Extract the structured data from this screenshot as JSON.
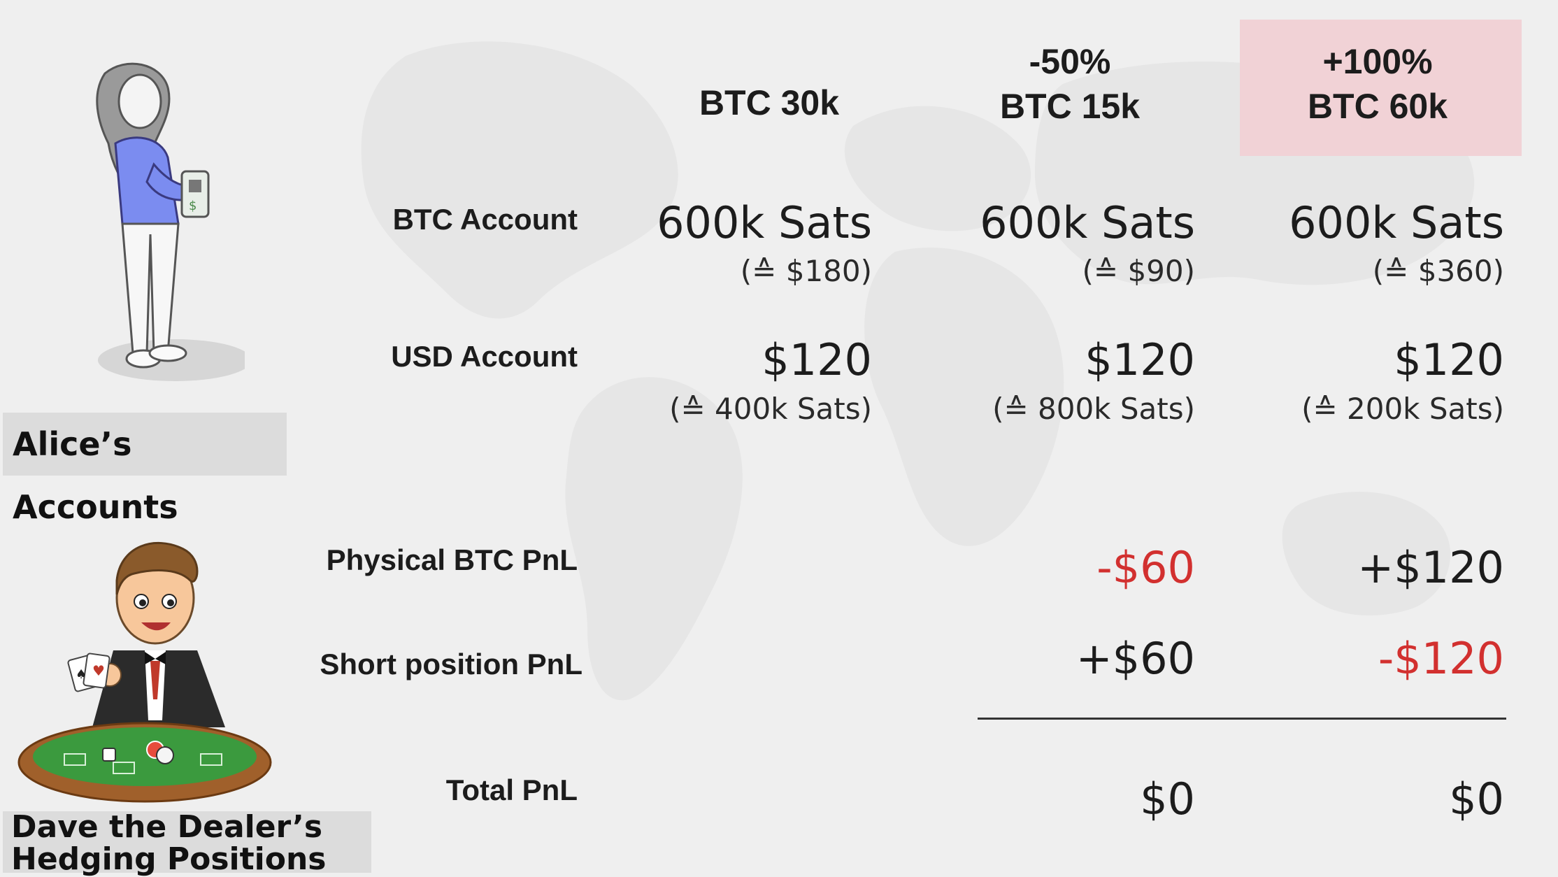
{
  "columns": {
    "col1": {
      "line1": "BTC 30k"
    },
    "col2": {
      "line1": "-50%",
      "line2": "BTC 15k"
    },
    "col3": {
      "line1": "+100%",
      "line2": "BTC 60k"
    }
  },
  "rows": {
    "btc_account": {
      "label": "BTC Account",
      "col1": {
        "value": "600k Sats",
        "sub": "(≙ $180)"
      },
      "col2": {
        "value": "600k Sats",
        "sub": "(≙ $90)"
      },
      "col3": {
        "value": "600k Sats",
        "sub": "(≙ $360)"
      }
    },
    "usd_account": {
      "label": "USD Account",
      "col1": {
        "value": "$120",
        "sub": "(≙ 400k Sats)"
      },
      "col2": {
        "value": "$120",
        "sub": "(≙ 800k Sats)"
      },
      "col3": {
        "value": "$120",
        "sub": "(≙ 200k Sats)"
      }
    },
    "physical_pnl": {
      "label": "Physical BTC PnL",
      "col2": "-$60",
      "col3": "+$120"
    },
    "short_pnl": {
      "label": "Short position PnL",
      "col2": "+$60",
      "col3": "-$120"
    },
    "total_pnl": {
      "label": "Total PnL",
      "col2": "$0",
      "col3": "$0"
    }
  },
  "captions": {
    "alice": "Alice’s Accounts",
    "dave_line1": "Dave the Dealer’s",
    "dave_line2": "Hedging Positions"
  },
  "colors": {
    "negative": "#d2302f",
    "highlight": "#f1d2d6",
    "background": "#efefef"
  }
}
